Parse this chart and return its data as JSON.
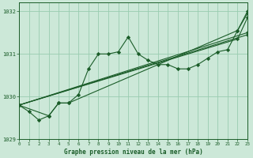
{
  "title": "Graphe pression niveau de la mer (hPa)",
  "background_color": "#cce8d8",
  "grid_color": "#99ccb0",
  "line_color": "#1a5c28",
  "x_values": [
    0,
    1,
    2,
    3,
    4,
    5,
    6,
    7,
    8,
    9,
    10,
    11,
    12,
    13,
    14,
    15,
    16,
    17,
    18,
    19,
    20,
    21,
    22,
    23
  ],
  "series1": [
    1029.8,
    1029.65,
    1029.45,
    1029.55,
    1029.85,
    1029.85,
    1030.05,
    1030.65,
    1031.0,
    1031.0,
    1031.05,
    1031.4,
    1031.0,
    1030.85,
    1030.75,
    1030.75,
    1030.65,
    1030.65,
    1030.75,
    1030.9,
    1031.05,
    1031.1,
    1031.55,
    1031.95
  ],
  "series2_x": [
    0,
    3,
    4,
    5,
    22,
    23
  ],
  "series2_y": [
    1029.8,
    1029.55,
    1029.85,
    1029.85,
    1031.55,
    1032.0
  ],
  "series3_x": [
    0,
    23
  ],
  "series3_y": [
    1029.8,
    1031.5
  ],
  "series4_x": [
    0,
    23
  ],
  "series4_y": [
    1029.8,
    1031.45
  ],
  "series5_x": [
    0,
    22,
    23
  ],
  "series5_y": [
    1029.8,
    1031.35,
    1031.85
  ],
  "ylim": [
    1029.0,
    1032.2
  ],
  "yticks": [
    1029,
    1030,
    1031,
    1032
  ],
  "xlim": [
    0,
    23
  ]
}
